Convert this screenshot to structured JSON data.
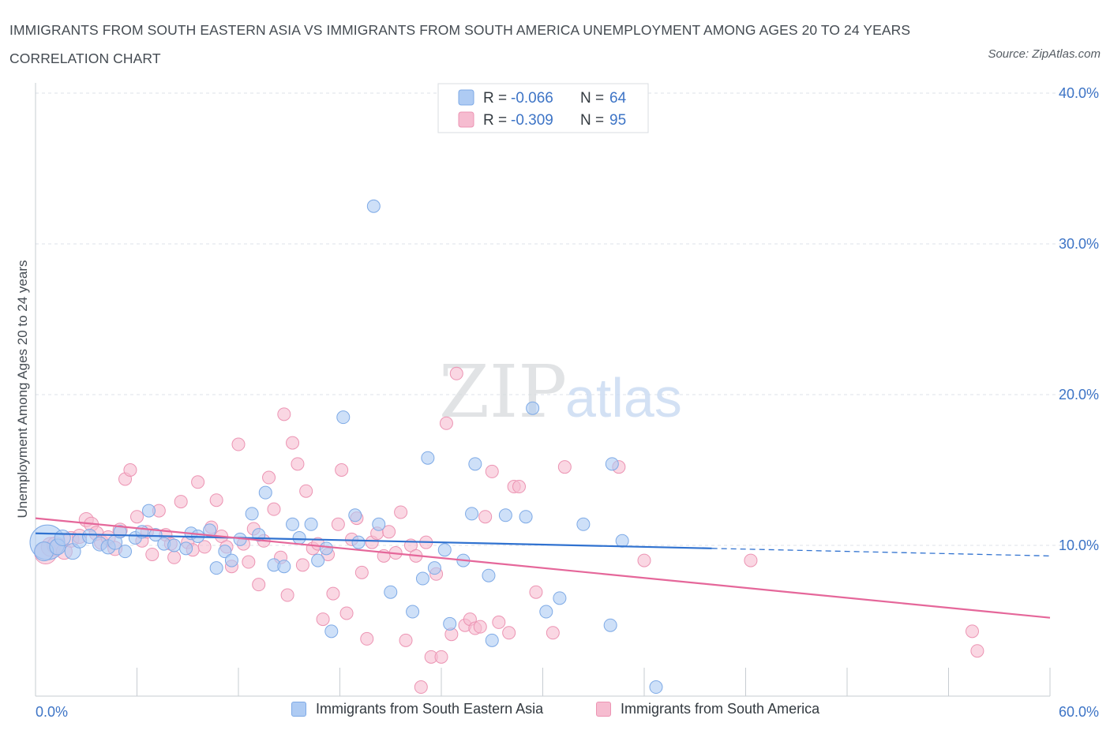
{
  "header": {
    "title": "IMMIGRANTS FROM SOUTH EASTERN ASIA VS IMMIGRANTS FROM SOUTH AMERICA UNEMPLOYMENT AMONG AGES 20 TO 24 YEARS CORRELATION CHART",
    "source": "Source: ZipAtlas.com"
  },
  "watermark": {
    "zip": "ZIP",
    "atlas": "atlas"
  },
  "colors": {
    "blue_fill": "#aecbf3",
    "blue_stroke": "#7eaae6",
    "blue_line": "#3072d0",
    "pink_fill": "#f6bcd0",
    "pink_stroke": "#ec94b3",
    "pink_line": "#e5679a",
    "axis_text": "#3d74c6",
    "grid": "#dde2e8"
  },
  "legend_top": {
    "rows": [
      {
        "r_label": "R =",
        "r_value": "-0.066",
        "n_label": "N =",
        "n_value": "64"
      },
      {
        "r_label": "R =",
        "r_value": "-0.309",
        "n_label": "N =",
        "n_value": "95"
      }
    ]
  },
  "chart_data": {
    "type": "scatter",
    "title": "IMMIGRANTS FROM SOUTH EASTERN ASIA VS IMMIGRANTS FROM SOUTH AMERICA UNEMPLOYMENT AMONG AGES 20 TO 24 YEARS CORRELATION CHART",
    "xlabel": "",
    "ylabel": "Unemployment Among Ages 20 to 24 years",
    "xlim": [
      0,
      60
    ],
    "ylim": [
      0,
      40
    ],
    "x_tick_labels": [
      "0.0%",
      "60.0%"
    ],
    "y_tick_labels": [
      "10.0%",
      "20.0%",
      "30.0%",
      "40.0%"
    ],
    "y_ticks": [
      10,
      20,
      30,
      40
    ],
    "grid": true,
    "legend_position": "top-center",
    "series": [
      {
        "name": "Immigrants from South Eastern Asia",
        "color": "#aecbf3",
        "r": -0.066,
        "n": 64,
        "trend": {
          "x": [
            0,
            40
          ],
          "y": [
            10.8,
            9.8
          ],
          "dashed_to_x": 60,
          "dashed_to_y": 9.3
        },
        "points": [
          [
            0.7,
            10.2,
            22
          ],
          [
            0.5,
            9.6,
            12
          ],
          [
            1.3,
            9.9,
            10
          ],
          [
            1.6,
            10.5,
            10
          ],
          [
            2.2,
            9.6,
            10
          ],
          [
            2.6,
            10.3,
            9
          ],
          [
            3.2,
            10.6,
            9
          ],
          [
            3.8,
            10.1,
            9
          ],
          [
            4.3,
            9.9,
            9
          ],
          [
            4.7,
            10.2,
            9
          ],
          [
            5.0,
            10.9,
            8
          ],
          [
            5.3,
            9.6,
            8
          ],
          [
            5.9,
            10.5,
            8
          ],
          [
            6.3,
            10.9,
            8
          ],
          [
            6.7,
            12.3,
            8
          ],
          [
            7.1,
            10.7,
            8
          ],
          [
            7.6,
            10.1,
            8
          ],
          [
            8.2,
            10.0,
            8
          ],
          [
            8.9,
            9.8,
            8
          ],
          [
            9.2,
            10.8,
            8
          ],
          [
            9.6,
            10.6,
            8
          ],
          [
            10.3,
            11.0,
            8
          ],
          [
            10.7,
            8.5,
            8
          ],
          [
            11.2,
            9.6,
            8
          ],
          [
            11.6,
            9.0,
            8
          ],
          [
            12.1,
            10.4,
            8
          ],
          [
            12.8,
            12.1,
            8
          ],
          [
            13.2,
            10.7,
            8
          ],
          [
            13.6,
            13.5,
            8
          ],
          [
            14.1,
            8.7,
            8
          ],
          [
            14.7,
            8.6,
            8
          ],
          [
            15.2,
            11.4,
            8
          ],
          [
            15.6,
            10.5,
            8
          ],
          [
            16.3,
            11.4,
            8
          ],
          [
            16.7,
            9.0,
            8
          ],
          [
            17.2,
            9.8,
            8
          ],
          [
            17.5,
            4.3,
            8
          ],
          [
            18.2,
            18.5,
            8
          ],
          [
            18.9,
            12.0,
            8
          ],
          [
            19.1,
            10.2,
            8
          ],
          [
            20.0,
            32.5,
            8
          ],
          [
            20.3,
            11.4,
            8
          ],
          [
            21.0,
            6.9,
            8
          ],
          [
            22.3,
            5.6,
            8
          ],
          [
            22.9,
            7.8,
            8
          ],
          [
            23.2,
            15.8,
            8
          ],
          [
            23.6,
            8.5,
            8
          ],
          [
            24.2,
            9.7,
            8
          ],
          [
            24.5,
            4.8,
            8
          ],
          [
            25.3,
            9.0,
            8
          ],
          [
            25.8,
            12.1,
            8
          ],
          [
            26.0,
            15.4,
            8
          ],
          [
            26.8,
            8.0,
            8
          ],
          [
            27.0,
            3.7,
            8
          ],
          [
            27.8,
            12.0,
            8
          ],
          [
            29.0,
            11.9,
            8
          ],
          [
            29.4,
            19.1,
            8
          ],
          [
            30.2,
            5.6,
            8
          ],
          [
            31.0,
            6.5,
            8
          ],
          [
            32.4,
            11.4,
            8
          ],
          [
            34.0,
            4.7,
            8
          ],
          [
            34.1,
            15.4,
            8
          ],
          [
            34.7,
            10.3,
            8
          ],
          [
            36.7,
            0.6,
            8
          ]
        ]
      },
      {
        "name": "Immigrants from South America",
        "color": "#f6bcd0",
        "r": -0.309,
        "n": 95,
        "trend": {
          "x": [
            0,
            60
          ],
          "y": [
            11.8,
            5.2
          ]
        },
        "points": [
          [
            0.6,
            9.5,
            14
          ],
          [
            0.9,
            9.9,
            12
          ],
          [
            1.2,
            10.0,
            11
          ],
          [
            1.7,
            9.6,
            10
          ],
          [
            2.1,
            10.4,
            10
          ],
          [
            2.6,
            10.6,
            9
          ],
          [
            3.0,
            11.7,
            9
          ],
          [
            3.3,
            11.4,
            9
          ],
          [
            3.6,
            10.8,
            9
          ],
          [
            3.9,
            10.2,
            9
          ],
          [
            4.3,
            10.5,
            9
          ],
          [
            4.7,
            9.8,
            9
          ],
          [
            5.0,
            11.0,
            9
          ],
          [
            5.3,
            14.4,
            8
          ],
          [
            5.6,
            15.0,
            8
          ],
          [
            6.0,
            11.9,
            8
          ],
          [
            6.3,
            10.3,
            8
          ],
          [
            6.6,
            10.9,
            8
          ],
          [
            6.9,
            9.4,
            8
          ],
          [
            7.3,
            12.3,
            8
          ],
          [
            7.7,
            10.7,
            8
          ],
          [
            8.0,
            10.1,
            8
          ],
          [
            8.2,
            9.2,
            8
          ],
          [
            8.6,
            12.9,
            8
          ],
          [
            9.0,
            10.2,
            8
          ],
          [
            9.3,
            9.7,
            8
          ],
          [
            9.6,
            14.2,
            8
          ],
          [
            10.0,
            9.9,
            8
          ],
          [
            10.4,
            11.2,
            8
          ],
          [
            10.7,
            13.0,
            8
          ],
          [
            11.0,
            10.6,
            8
          ],
          [
            11.3,
            9.9,
            8
          ],
          [
            11.6,
            8.6,
            8
          ],
          [
            12.0,
            16.7,
            8
          ],
          [
            12.3,
            10.1,
            8
          ],
          [
            12.6,
            8.9,
            8
          ],
          [
            12.9,
            11.1,
            8
          ],
          [
            13.2,
            7.4,
            8
          ],
          [
            13.5,
            10.3,
            8
          ],
          [
            13.8,
            14.5,
            8
          ],
          [
            14.1,
            12.4,
            8
          ],
          [
            14.5,
            9.2,
            8
          ],
          [
            14.7,
            18.7,
            8
          ],
          [
            14.9,
            6.7,
            8
          ],
          [
            15.2,
            16.8,
            8
          ],
          [
            15.5,
            15.4,
            8
          ],
          [
            15.8,
            8.7,
            8
          ],
          [
            16.0,
            13.6,
            8
          ],
          [
            16.4,
            9.8,
            8
          ],
          [
            16.7,
            10.1,
            8
          ],
          [
            17.0,
            5.1,
            8
          ],
          [
            17.3,
            9.4,
            8
          ],
          [
            17.6,
            6.8,
            8
          ],
          [
            17.9,
            11.4,
            8
          ],
          [
            18.1,
            15.0,
            8
          ],
          [
            18.4,
            5.5,
            8
          ],
          [
            18.7,
            10.4,
            8
          ],
          [
            19.0,
            11.8,
            8
          ],
          [
            19.3,
            8.2,
            8
          ],
          [
            19.6,
            3.8,
            8
          ],
          [
            19.9,
            10.2,
            8
          ],
          [
            20.2,
            10.8,
            8
          ],
          [
            20.6,
            9.3,
            8
          ],
          [
            20.9,
            10.9,
            8
          ],
          [
            21.3,
            9.5,
            8
          ],
          [
            21.6,
            12.2,
            8
          ],
          [
            21.9,
            3.7,
            8
          ],
          [
            22.2,
            10.0,
            8
          ],
          [
            22.5,
            9.3,
            8
          ],
          [
            22.8,
            0.6,
            8
          ],
          [
            23.1,
            10.2,
            8
          ],
          [
            23.4,
            2.6,
            8
          ],
          [
            23.7,
            8.1,
            8
          ],
          [
            24.0,
            2.6,
            8
          ],
          [
            24.3,
            18.1,
            8
          ],
          [
            24.6,
            4.1,
            8
          ],
          [
            24.9,
            21.4,
            8
          ],
          [
            25.4,
            4.7,
            8
          ],
          [
            25.7,
            5.1,
            8
          ],
          [
            26.0,
            4.5,
            8
          ],
          [
            26.3,
            4.6,
            8
          ],
          [
            26.6,
            11.9,
            8
          ],
          [
            27.0,
            14.9,
            8
          ],
          [
            27.4,
            4.9,
            8
          ],
          [
            28.0,
            4.2,
            8
          ],
          [
            28.3,
            13.9,
            8
          ],
          [
            28.6,
            13.9,
            8
          ],
          [
            29.6,
            6.9,
            8
          ],
          [
            30.6,
            4.2,
            8
          ],
          [
            31.3,
            15.2,
            8
          ],
          [
            34.5,
            15.2,
            8
          ],
          [
            36.0,
            9.0,
            8
          ],
          [
            42.3,
            9.0,
            8
          ],
          [
            55.4,
            4.3,
            8
          ],
          [
            55.7,
            3.0,
            8
          ]
        ]
      }
    ]
  },
  "legend_bottom": {
    "items": [
      {
        "label": "Immigrants from South Eastern Asia"
      },
      {
        "label": "Immigrants from South America"
      }
    ]
  }
}
